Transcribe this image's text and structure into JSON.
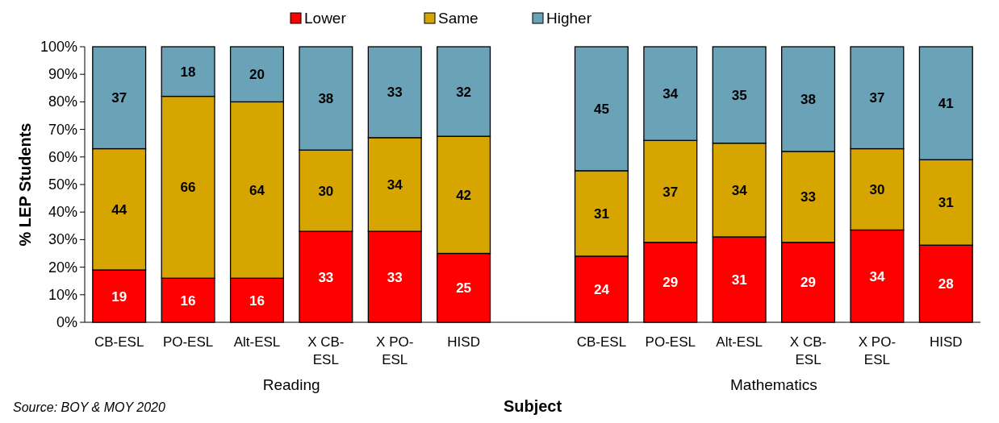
{
  "chart_data": {
    "type": "bar",
    "stacked": true,
    "xlabel": "Subject",
    "ylabel": "% LEP Students",
    "legend": "top",
    "grid": false,
    "categories": [
      "CB-ESL",
      "PO-ESL",
      "Alt-ESL",
      "X CB-ESL",
      "X PO-ESL",
      "HISD",
      null,
      "CB-ESL",
      "PO-ESL",
      "Alt-ESL",
      "X CB-ESL",
      "X PO-ESL",
      "HISD"
    ],
    "ylim": [
      0,
      100
    ],
    "yticks": [
      {
        "value": 0,
        "label": "0%"
      },
      {
        "value": 10,
        "label": "10%"
      },
      {
        "value": 20,
        "label": "20%"
      },
      {
        "value": 30,
        "label": "30%"
      },
      {
        "value": 40,
        "label": "40%"
      },
      {
        "value": 50,
        "label": "50%"
      },
      {
        "value": 60,
        "label": "60%"
      },
      {
        "value": 70,
        "label": "70%"
      },
      {
        "value": 80,
        "label": "80%"
      },
      {
        "value": 90,
        "label": "90%"
      },
      {
        "value": 100,
        "label": "100%"
      }
    ],
    "series": [
      {
        "name": "Lower",
        "color": "#ff0000",
        "values": [
          19,
          16,
          16,
          33,
          33,
          25,
          null,
          24,
          29,
          31,
          29,
          33.5,
          28
        ],
        "value_labels": [
          "19",
          "16",
          "16",
          "33",
          "33",
          "25",
          null,
          "24",
          "29",
          "31",
          "29",
          "34",
          "28"
        ]
      },
      {
        "name": "Same",
        "color": "#d6a500",
        "values": [
          44,
          66,
          64,
          29.5,
          34,
          42.5,
          null,
          31,
          37,
          34,
          33,
          29.5,
          31
        ],
        "value_labels": [
          "44",
          "66",
          "64",
          "30",
          "34",
          "42",
          null,
          "31",
          "37",
          "34",
          "33",
          "30",
          "31"
        ]
      },
      {
        "name": "Higher",
        "color": "#6aa3b8",
        "values": [
          37,
          18,
          20,
          37.5,
          33,
          32.5,
          null,
          45,
          34,
          35,
          38,
          37,
          41
        ],
        "value_labels": [
          "37",
          "18",
          "20",
          "38",
          "33",
          "32",
          null,
          "45",
          "34",
          "35",
          "38",
          "37",
          "41"
        ]
      }
    ],
    "annotations": [
      "Reading",
      "Mathematics",
      "Source: BOY & MOY 2020"
    ]
  }
}
